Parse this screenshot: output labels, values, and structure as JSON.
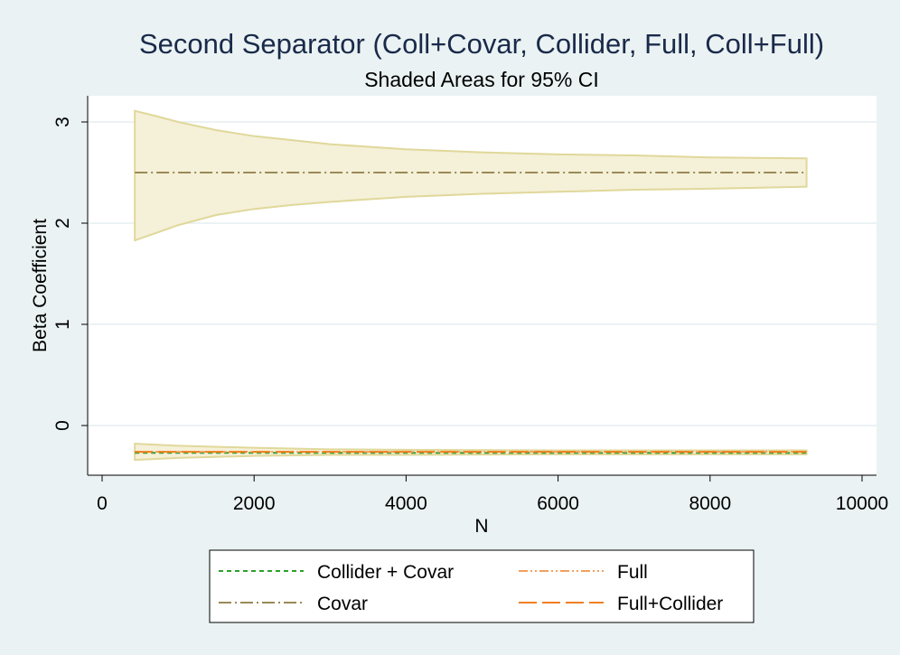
{
  "chart_data": {
    "type": "line",
    "title": "Second Separator (Coll+Covar, Collider, Full, Coll+Full)",
    "subtitle": "Shaded Areas for 95% CI",
    "xlabel": "N",
    "ylabel": "Beta Coefficient",
    "xlim": [
      0,
      10000
    ],
    "ylim": [
      -0.5,
      3.25
    ],
    "xticks": [
      0,
      2000,
      4000,
      6000,
      8000,
      10000
    ],
    "yticks": [
      0,
      1,
      2,
      3
    ],
    "grid": true,
    "x": [
      430,
      700,
      1000,
      1500,
      2000,
      2500,
      3000,
      4000,
      5000,
      6000,
      7000,
      8000,
      9270
    ],
    "series": [
      {
        "name": "Collider + Covar",
        "style": "short-dash",
        "color": "#2ca02c",
        "values": [
          -0.27,
          -0.27,
          -0.27,
          -0.27,
          -0.27,
          -0.27,
          -0.27,
          -0.27,
          -0.27,
          -0.27,
          -0.27,
          -0.27,
          -0.27
        ]
      },
      {
        "name": "Covar",
        "style": "dash-dot",
        "color": "#9a8a55",
        "values": [
          2.5,
          2.5,
          2.5,
          2.5,
          2.5,
          2.5,
          2.5,
          2.5,
          2.5,
          2.5,
          2.5,
          2.5,
          2.5
        ]
      },
      {
        "name": "Full",
        "style": "dash-dot-dot",
        "color": "#f0a060",
        "values": [
          -0.26,
          -0.26,
          -0.26,
          -0.26,
          -0.26,
          -0.26,
          -0.26,
          -0.26,
          -0.26,
          -0.26,
          -0.26,
          -0.26,
          -0.26
        ]
      },
      {
        "name": "Full+Collider",
        "style": "long-dash",
        "color": "#f08020",
        "values": [
          -0.26,
          -0.26,
          -0.26,
          -0.26,
          -0.26,
          -0.26,
          -0.26,
          -0.26,
          -0.26,
          -0.26,
          -0.26,
          -0.26,
          -0.26
        ]
      }
    ],
    "ci_bands": [
      {
        "x": [
          430,
          700,
          1000,
          1500,
          2000,
          2500,
          3000,
          4000,
          5000,
          6000,
          7000,
          8000,
          9270
        ],
        "upper": [
          3.11,
          3.06,
          3.0,
          2.92,
          2.86,
          2.82,
          2.78,
          2.73,
          2.7,
          2.68,
          2.67,
          2.65,
          2.64
        ],
        "lower": [
          1.83,
          1.9,
          1.98,
          2.08,
          2.14,
          2.18,
          2.21,
          2.26,
          2.29,
          2.31,
          2.33,
          2.34,
          2.36
        ],
        "color": "#f5f0d8",
        "edge": "#e0d89a"
      },
      {
        "x": [
          430,
          1000,
          2000,
          3000,
          4000,
          6000,
          8000,
          9270
        ],
        "upper": [
          -0.18,
          -0.2,
          -0.22,
          -0.235,
          -0.24,
          -0.245,
          -0.245,
          -0.245
        ],
        "lower": [
          -0.34,
          -0.32,
          -0.3,
          -0.29,
          -0.29,
          -0.285,
          -0.285,
          -0.285
        ],
        "color": "#f5f0d8",
        "edge": "#e0d89a"
      }
    ],
    "legend": {
      "placement": "bottom",
      "columns": 2,
      "entries": [
        "Collider + Covar",
        "Full",
        "Covar",
        "Full+Collider"
      ]
    }
  }
}
